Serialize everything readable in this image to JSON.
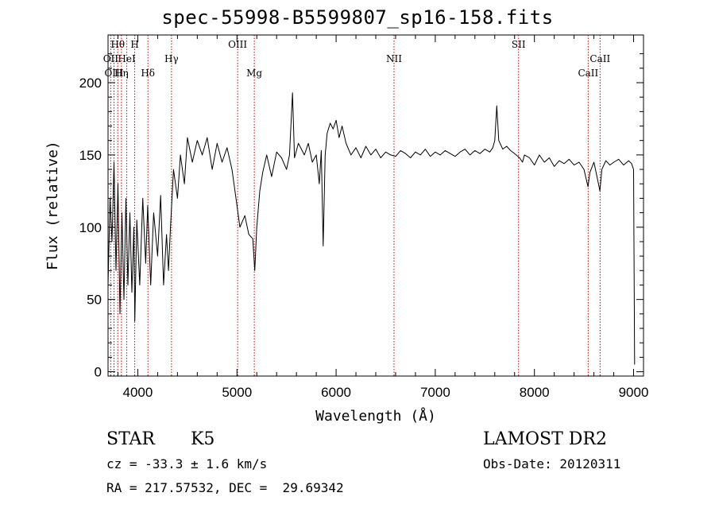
{
  "header": {
    "title": "spec-55998-B5599807_sp16-158.fits"
  },
  "info": {
    "object_class": "STAR",
    "subclass": "K5",
    "survey": "LAMOST DR2",
    "cz": "cz = -33.3 ± 1.6 km/s",
    "obs_date": "Obs-Date: 20120311",
    "coords": "RA = 217.57532, DEC =  29.69342"
  },
  "chart_data": {
    "type": "line",
    "title": "spec-55998-B5599807_sp16-158.fits",
    "xlabel": "Wavelength (Å)",
    "ylabel": "Flux (relative)",
    "xlim": [
      3700,
      9100
    ],
    "ylim": [
      -3,
      233
    ],
    "xticks": [
      4000,
      5000,
      6000,
      7000,
      8000,
      9000
    ],
    "yticks": [
      0,
      50,
      100,
      150,
      200
    ],
    "grid": false,
    "legend": "none",
    "line_color": "#000000",
    "marker_color": "#cc0000",
    "line_markers": [
      {
        "label": "Hθ",
        "x": 3798,
        "row": 1
      },
      {
        "label": "H",
        "x": 3969,
        "row": 1
      },
      {
        "label": "OII",
        "x": 3727,
        "row": 2
      },
      {
        "label": "HeI",
        "x": 3889,
        "row": 2
      },
      {
        "label": "OIII",
        "x": 3760,
        "row": 3
      },
      {
        "label": "Hη",
        "x": 3835,
        "row": 3
      },
      {
        "label": "Hδ",
        "x": 4102,
        "row": 3
      },
      {
        "label": "Hγ",
        "x": 4340,
        "row": 2
      },
      {
        "label": "OIII",
        "x": 5007,
        "row": 1
      },
      {
        "label": "Mg",
        "x": 5175,
        "row": 3
      },
      {
        "label": "NII",
        "x": 6584,
        "row": 2
      },
      {
        "label": "SII",
        "x": 7840,
        "row": 1
      },
      {
        "label": "CaII",
        "x": 8542,
        "row": 3
      },
      {
        "label": "CaII",
        "x": 8662,
        "row": 2
      }
    ],
    "series": [
      {
        "values": [
          [
            3700,
            60
          ],
          [
            3720,
            120
          ],
          [
            3740,
            90
          ],
          [
            3760,
            145
          ],
          [
            3780,
            70
          ],
          [
            3800,
            130
          ],
          [
            3820,
            40
          ],
          [
            3840,
            110
          ],
          [
            3860,
            50
          ],
          [
            3880,
            120
          ],
          [
            3900,
            60
          ],
          [
            3920,
            110
          ],
          [
            3940,
            55
          ],
          [
            3960,
            100
          ],
          [
            3970,
            35
          ],
          [
            3990,
            105
          ],
          [
            4020,
            60
          ],
          [
            4050,
            120
          ],
          [
            4080,
            75
          ],
          [
            4100,
            115
          ],
          [
            4130,
            60
          ],
          [
            4160,
            110
          ],
          [
            4200,
            80
          ],
          [
            4230,
            122
          ],
          [
            4260,
            60
          ],
          [
            4290,
            95
          ],
          [
            4310,
            70
          ],
          [
            4330,
            100
          ],
          [
            4360,
            140
          ],
          [
            4400,
            120
          ],
          [
            4430,
            150
          ],
          [
            4470,
            130
          ],
          [
            4500,
            162
          ],
          [
            4550,
            145
          ],
          [
            4600,
            160
          ],
          [
            4650,
            150
          ],
          [
            4700,
            162
          ],
          [
            4750,
            140
          ],
          [
            4800,
            158
          ],
          [
            4850,
            145
          ],
          [
            4900,
            155
          ],
          [
            4950,
            140
          ],
          [
            5000,
            115
          ],
          [
            5030,
            100
          ],
          [
            5080,
            108
          ],
          [
            5120,
            95
          ],
          [
            5160,
            92
          ],
          [
            5180,
            70
          ],
          [
            5200,
            100
          ],
          [
            5230,
            125
          ],
          [
            5260,
            138
          ],
          [
            5300,
            150
          ],
          [
            5350,
            135
          ],
          [
            5400,
            152
          ],
          [
            5450,
            148
          ],
          [
            5500,
            140
          ],
          [
            5530,
            150
          ],
          [
            5560,
            193
          ],
          [
            5580,
            148
          ],
          [
            5620,
            158
          ],
          [
            5680,
            150
          ],
          [
            5720,
            158
          ],
          [
            5760,
            145
          ],
          [
            5800,
            150
          ],
          [
            5830,
            130
          ],
          [
            5850,
            153
          ],
          [
            5870,
            87
          ],
          [
            5890,
            150
          ],
          [
            5910,
            165
          ],
          [
            5940,
            172
          ],
          [
            5970,
            168
          ],
          [
            6000,
            174
          ],
          [
            6030,
            162
          ],
          [
            6060,
            170
          ],
          [
            6100,
            158
          ],
          [
            6150,
            150
          ],
          [
            6200,
            155
          ],
          [
            6250,
            148
          ],
          [
            6300,
            156
          ],
          [
            6350,
            150
          ],
          [
            6400,
            154
          ],
          [
            6450,
            148
          ],
          [
            6500,
            152
          ],
          [
            6550,
            150
          ],
          [
            6600,
            149
          ],
          [
            6650,
            153
          ],
          [
            6700,
            151
          ],
          [
            6750,
            148
          ],
          [
            6800,
            152
          ],
          [
            6850,
            150
          ],
          [
            6900,
            154
          ],
          [
            6950,
            149
          ],
          [
            7000,
            152
          ],
          [
            7050,
            150
          ],
          [
            7100,
            153
          ],
          [
            7150,
            151
          ],
          [
            7200,
            149
          ],
          [
            7250,
            152
          ],
          [
            7300,
            154
          ],
          [
            7350,
            150
          ],
          [
            7400,
            153
          ],
          [
            7450,
            151
          ],
          [
            7500,
            154
          ],
          [
            7550,
            152
          ],
          [
            7580,
            155
          ],
          [
            7600,
            160
          ],
          [
            7620,
            184
          ],
          [
            7640,
            160
          ],
          [
            7680,
            154
          ],
          [
            7720,
            156
          ],
          [
            7760,
            153
          ],
          [
            7800,
            151
          ],
          [
            7850,
            148
          ],
          [
            7880,
            145
          ],
          [
            7900,
            150
          ],
          [
            7950,
            148
          ],
          [
            8000,
            143
          ],
          [
            8050,
            150
          ],
          [
            8100,
            145
          ],
          [
            8150,
            148
          ],
          [
            8200,
            142
          ],
          [
            8250,
            146
          ],
          [
            8300,
            144
          ],
          [
            8350,
            147
          ],
          [
            8400,
            143
          ],
          [
            8450,
            145
          ],
          [
            8500,
            140
          ],
          [
            8540,
            128
          ],
          [
            8560,
            138
          ],
          [
            8600,
            145
          ],
          [
            8640,
            132
          ],
          [
            8660,
            125
          ],
          [
            8680,
            140
          ],
          [
            8720,
            146
          ],
          [
            8760,
            143
          ],
          [
            8800,
            145
          ],
          [
            8850,
            147
          ],
          [
            8900,
            143
          ],
          [
            8950,
            146
          ],
          [
            8980,
            144
          ],
          [
            9000,
            140
          ],
          [
            9010,
            5
          ]
        ]
      }
    ]
  }
}
